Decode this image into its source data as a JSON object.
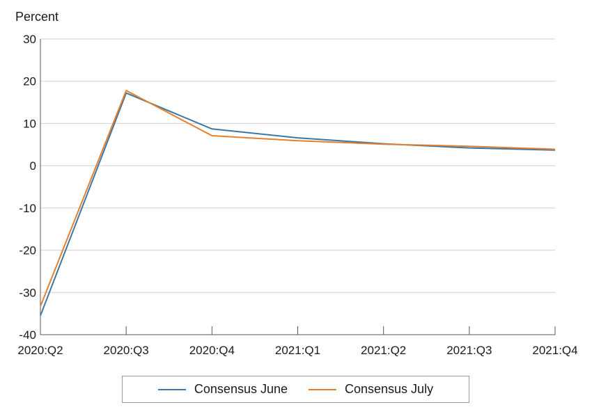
{
  "chart_data": {
    "type": "line",
    "ylabel": "Percent",
    "categories": [
      "2020:Q2",
      "2020:Q3",
      "2020:Q4",
      "2021:Q1",
      "2021:Q2",
      "2021:Q3",
      "2021:Q4"
    ],
    "ylim": [
      -40,
      30
    ],
    "yticks": [
      30,
      20,
      10,
      0,
      -10,
      -20,
      -30,
      -40
    ],
    "ytick_labels": [
      "30",
      "20",
      "10",
      "0",
      "-10",
      "-20",
      "-30",
      "-40"
    ],
    "grid": true,
    "legend_position": "bottom",
    "series": [
      {
        "name": "Consensus June",
        "color": "#3a77a6",
        "values": [
          -35.5,
          17.2,
          8.7,
          6.6,
          5.2,
          4.2,
          3.7
        ]
      },
      {
        "name": "Consensus July",
        "color": "#e57f2e",
        "values": [
          -33.3,
          17.8,
          7.1,
          5.9,
          5.1,
          4.6,
          3.9
        ]
      }
    ]
  }
}
